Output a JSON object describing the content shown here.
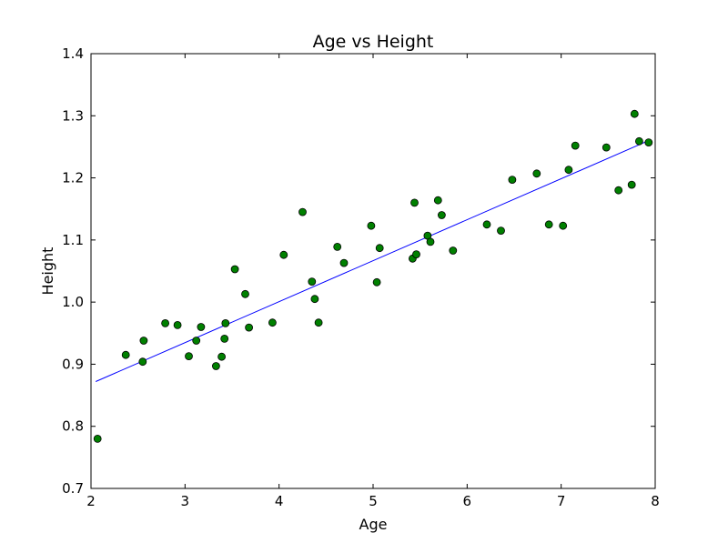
{
  "chart_data": {
    "type": "scatter",
    "title": "Age vs Height",
    "xlabel": "Age",
    "ylabel": "Height",
    "xlim": [
      2,
      8
    ],
    "ylim": [
      0.7,
      1.4
    ],
    "xticks": [
      2,
      3,
      4,
      5,
      6,
      7,
      8
    ],
    "yticks": [
      0.7,
      0.8,
      0.9,
      1.0,
      1.1,
      1.2,
      1.3,
      1.4
    ],
    "xtick_labels": [
      "2",
      "3",
      "4",
      "5",
      "6",
      "7",
      "8"
    ],
    "ytick_labels": [
      "0.7",
      "0.8",
      "0.9",
      "1.0",
      "1.1",
      "1.2",
      "1.3",
      "1.4"
    ],
    "grid": false,
    "series": [
      {
        "kind": "points",
        "color": "#008000",
        "edge_color": "#000000",
        "points": [
          [
            2.07,
            0.78
          ],
          [
            2.37,
            0.915
          ],
          [
            2.55,
            0.904
          ],
          [
            2.56,
            0.938
          ],
          [
            2.79,
            0.966
          ],
          [
            2.92,
            0.963
          ],
          [
            3.04,
            0.913
          ],
          [
            3.12,
            0.938
          ],
          [
            3.17,
            0.96
          ],
          [
            3.33,
            0.897
          ],
          [
            3.39,
            0.912
          ],
          [
            3.42,
            0.941
          ],
          [
            3.43,
            0.966
          ],
          [
            3.53,
            1.053
          ],
          [
            3.64,
            1.013
          ],
          [
            3.68,
            0.959
          ],
          [
            3.93,
            0.967
          ],
          [
            4.05,
            1.076
          ],
          [
            4.25,
            1.145
          ],
          [
            4.35,
            1.033
          ],
          [
            4.38,
            1.005
          ],
          [
            4.42,
            0.967
          ],
          [
            4.62,
            1.089
          ],
          [
            4.69,
            1.063
          ],
          [
            4.98,
            1.123
          ],
          [
            5.04,
            1.032
          ],
          [
            5.07,
            1.087
          ],
          [
            5.42,
            1.07
          ],
          [
            5.44,
            1.16
          ],
          [
            5.46,
            1.077
          ],
          [
            5.58,
            1.107
          ],
          [
            5.61,
            1.097
          ],
          [
            5.69,
            1.164
          ],
          [
            5.73,
            1.14
          ],
          [
            5.85,
            1.083
          ],
          [
            6.21,
            1.125
          ],
          [
            6.36,
            1.115
          ],
          [
            6.48,
            1.197
          ],
          [
            6.74,
            1.207
          ],
          [
            6.87,
            1.125
          ],
          [
            7.02,
            1.123
          ],
          [
            7.08,
            1.213
          ],
          [
            7.15,
            1.252
          ],
          [
            7.48,
            1.249
          ],
          [
            7.61,
            1.18
          ],
          [
            7.75,
            1.189
          ],
          [
            7.78,
            1.303
          ],
          [
            7.83,
            1.259
          ],
          [
            7.93,
            1.257
          ]
        ]
      },
      {
        "kind": "line",
        "color": "#0000ff",
        "points": [
          [
            2.05,
            0.872
          ],
          [
            7.93,
            1.26
          ]
        ]
      }
    ]
  }
}
